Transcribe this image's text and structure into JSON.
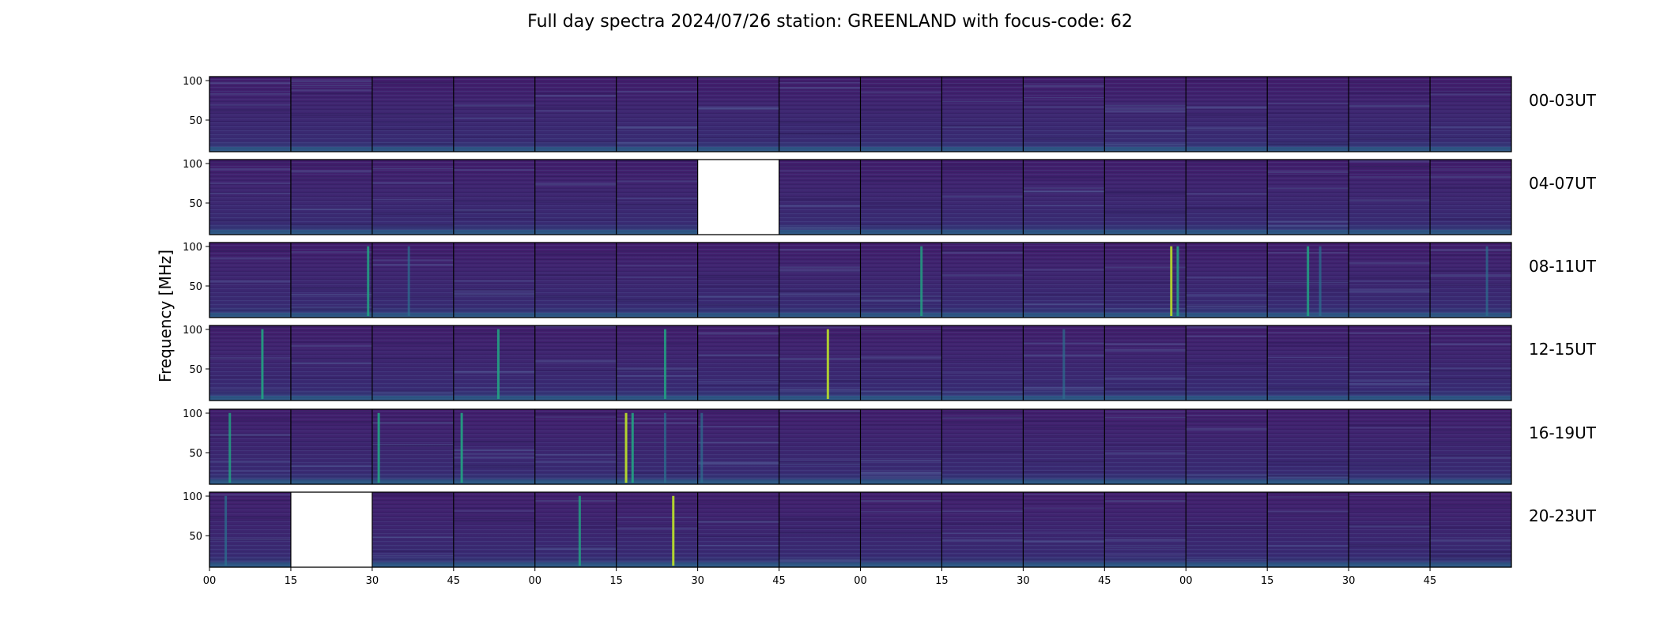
{
  "chart_data": {
    "type": "heatmap",
    "title": "Full day spectra 2024/07/26 station: GREENLAND with focus-code: 62",
    "ylabel": "Frequency [MHz]",
    "ylim": [
      10,
      105
    ],
    "y_ticks": [
      "100",
      "50"
    ],
    "x_tick_labels": [
      "00",
      "15",
      "30",
      "45",
      "00",
      "15",
      "30",
      "45",
      "00",
      "15",
      "30",
      "45",
      "00",
      "15",
      "30",
      "45"
    ],
    "colormap": "viridis",
    "colors": {
      "background": "#3b1f6e",
      "low": "#3f1d6c",
      "mid": "#2b6f8e",
      "high": "#21a783",
      "peak": "#b8dd2b",
      "missing": "#ffffff"
    },
    "rows": [
      {
        "label": "00-03UT",
        "missing_panels": [],
        "bursts": []
      },
      {
        "label": "04-07UT",
        "missing_panels": [
          6
        ],
        "bursts": []
      },
      {
        "label": "08-11UT",
        "missing_panels": [],
        "bursts": [
          {
            "panel": 1,
            "pos": 0.95,
            "strength": 0.7
          },
          {
            "panel": 2,
            "pos": 0.45,
            "strength": 0.4
          },
          {
            "panel": 8,
            "pos": 0.75,
            "strength": 0.6
          },
          {
            "panel": 11,
            "pos": 0.82,
            "strength": 0.9
          },
          {
            "panel": 11,
            "pos": 0.9,
            "strength": 0.8
          },
          {
            "panel": 13,
            "pos": 0.5,
            "strength": 0.7
          },
          {
            "panel": 13,
            "pos": 0.65,
            "strength": 0.5
          },
          {
            "panel": 15,
            "pos": 0.7,
            "strength": 0.4
          }
        ]
      },
      {
        "label": "12-15UT",
        "missing_panels": [],
        "bursts": [
          {
            "panel": 0,
            "pos": 0.65,
            "strength": 0.8
          },
          {
            "panel": 3,
            "pos": 0.55,
            "strength": 0.8
          },
          {
            "panel": 5,
            "pos": 0.6,
            "strength": 0.7
          },
          {
            "panel": 7,
            "pos": 0.6,
            "strength": 0.9
          },
          {
            "panel": 10,
            "pos": 0.5,
            "strength": 0.4
          }
        ]
      },
      {
        "label": "16-19UT",
        "missing_panels": [],
        "bursts": [
          {
            "panel": 0,
            "pos": 0.25,
            "strength": 0.6
          },
          {
            "panel": 2,
            "pos": 0.08,
            "strength": 0.8
          },
          {
            "panel": 3,
            "pos": 0.1,
            "strength": 0.8
          },
          {
            "panel": 5,
            "pos": 0.12,
            "strength": 1.0
          },
          {
            "panel": 5,
            "pos": 0.2,
            "strength": 0.8
          },
          {
            "panel": 5,
            "pos": 0.6,
            "strength": 0.5
          },
          {
            "panel": 6,
            "pos": 0.05,
            "strength": 0.4
          }
        ]
      },
      {
        "label": "20-23UT",
        "missing_panels": [
          1
        ],
        "bursts": [
          {
            "panel": 0,
            "pos": 0.2,
            "strength": 0.5
          },
          {
            "panel": 4,
            "pos": 0.55,
            "strength": 0.6
          },
          {
            "panel": 5,
            "pos": 0.7,
            "strength": 1.0
          }
        ]
      }
    ]
  }
}
